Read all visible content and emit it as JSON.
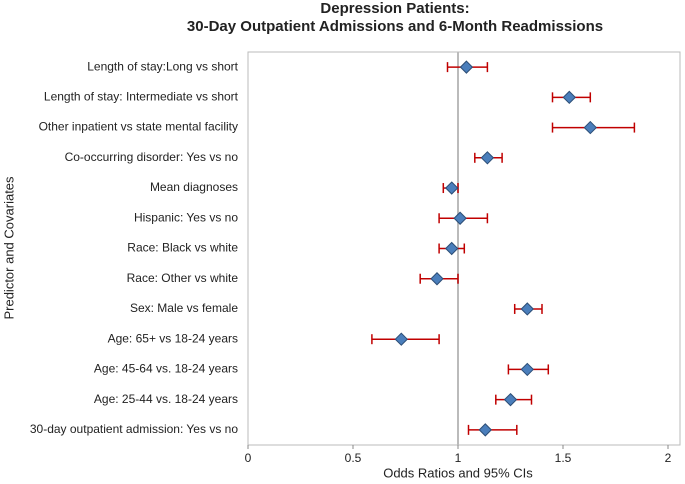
{
  "chart_data": {
    "type": "forest",
    "title": "Depression Patients:",
    "subtitle": "30-Day Outpatient Admissions and 6-Month Readmissions",
    "x_label": "Odds Ratios and 95% CIs",
    "y_label": "Predictor and Covariates",
    "categories": [
      "Length of stay:Long vs short",
      "Length of stay: Intermediate vs short",
      "Other inpatient vs state mental facility",
      "Co-occurring disorder: Yes vs no",
      "Mean diagnoses",
      "Hispanic: Yes vs no",
      "Race: Black vs white",
      "Race: Other vs white",
      "Sex: Male vs female",
      "Age: 65+ vs 18-24 years",
      "Age: 45-64 vs. 18-24 years",
      "Age: 25-44 vs. 18-24 years",
      "30-day outpatient admission: Yes vs no"
    ],
    "values": [
      1.04,
      1.53,
      1.63,
      1.14,
      0.97,
      1.01,
      0.97,
      0.9,
      1.33,
      0.73,
      1.33,
      1.25,
      1.13
    ],
    "lower": [
      0.95,
      1.45,
      1.45,
      1.08,
      0.93,
      0.91,
      0.91,
      0.82,
      1.27,
      0.59,
      1.24,
      1.18,
      1.05
    ],
    "upper": [
      1.14,
      1.63,
      1.84,
      1.21,
      1.0,
      1.14,
      1.03,
      1.0,
      1.4,
      0.91,
      1.43,
      1.35,
      1.28
    ],
    "xlim": [
      0,
      2
    ],
    "xticks": [
      0,
      0.5,
      1,
      1.5,
      2
    ],
    "reference_line": 1,
    "color": "#4a7ebb",
    "error_color": "#c00000"
  }
}
